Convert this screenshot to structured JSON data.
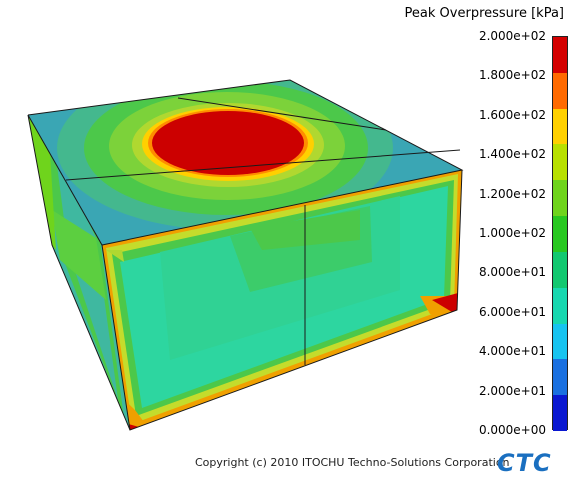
{
  "legend": {
    "title": "Peak Overpressure [kPa]",
    "labels": [
      "2.000e+02",
      "1.800e+02",
      "1.600e+02",
      "1.400e+02",
      "1.200e+02",
      "1.000e+02",
      "8.000e+01",
      "6.000e+01",
      "4.000e+01",
      "2.000e+01",
      "0.000e+00"
    ],
    "colors": [
      "#d40000",
      "#ff6a00",
      "#ffd000",
      "#b8e000",
      "#6fd41c",
      "#28c820",
      "#12c870",
      "#18d8b0",
      "#18c4f0",
      "#1a70e0",
      "#0a18d0"
    ]
  },
  "colors": {
    "red": "#cc0000",
    "orange": "#f0a000",
    "yellow_green": "#b0d830",
    "green": "#4cc84a",
    "teal": "#3fb8a0",
    "blue_teal": "#3aa6b4",
    "mint": "#2dd6a0",
    "edge": "#1a1a1a",
    "brand": "#1a6fc0"
  },
  "footer": {
    "copyright": "Copyright (c) 2010 ITOCHU Techno-Solutions Corporation",
    "brand": "CTC"
  }
}
